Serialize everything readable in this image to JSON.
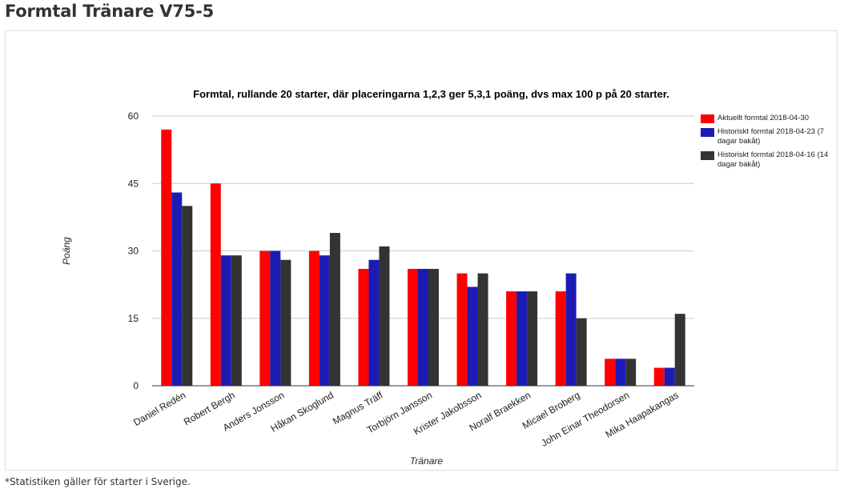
{
  "page": {
    "title": "Formtal Tränare V75-5",
    "footnote": "*Statistiken gäller för starter i Sverige."
  },
  "chart_data": {
    "type": "bar",
    "title": "Formtal, rullande 20 starter, där placeringarna 1,2,3 ger 5,3,1 poäng, dvs max 100 p på 20 starter.",
    "xlabel": "Tränare",
    "ylabel": "Poäng",
    "ylim": [
      0,
      60
    ],
    "yticks": [
      "0",
      "15",
      "30",
      "45",
      "60"
    ],
    "grid": true,
    "legend_position": "right",
    "categories": [
      "Daniel Redén",
      "Robert Bergh",
      "Anders Jonsson",
      "Håkan Skoglund",
      "Magnus Träff",
      "Torbjörn Jansson",
      "Krister Jakobsson",
      "Noralf Braekken",
      "Micael Broberg",
      "John Einar Theodorsen",
      "Mika Haapakangas"
    ],
    "series": [
      {
        "name": "Aktuellt formtal 2018-04-30",
        "color": "#ff0000",
        "values": [
          57,
          45,
          30,
          30,
          26,
          26,
          25,
          21,
          21,
          6,
          4
        ]
      },
      {
        "name": "Historiskt formtal 2018-04-23 (7 dagar bakåt)",
        "color": "#1c1cb4",
        "values": [
          43,
          29,
          30,
          29,
          28,
          26,
          22,
          21,
          25,
          6,
          4
        ]
      },
      {
        "name": "Historiskt formtal 2018-04-16 (14 dagar bakåt)",
        "color": "#333333",
        "values": [
          40,
          29,
          28,
          34,
          31,
          26,
          25,
          21,
          15,
          6,
          16
        ]
      }
    ]
  }
}
